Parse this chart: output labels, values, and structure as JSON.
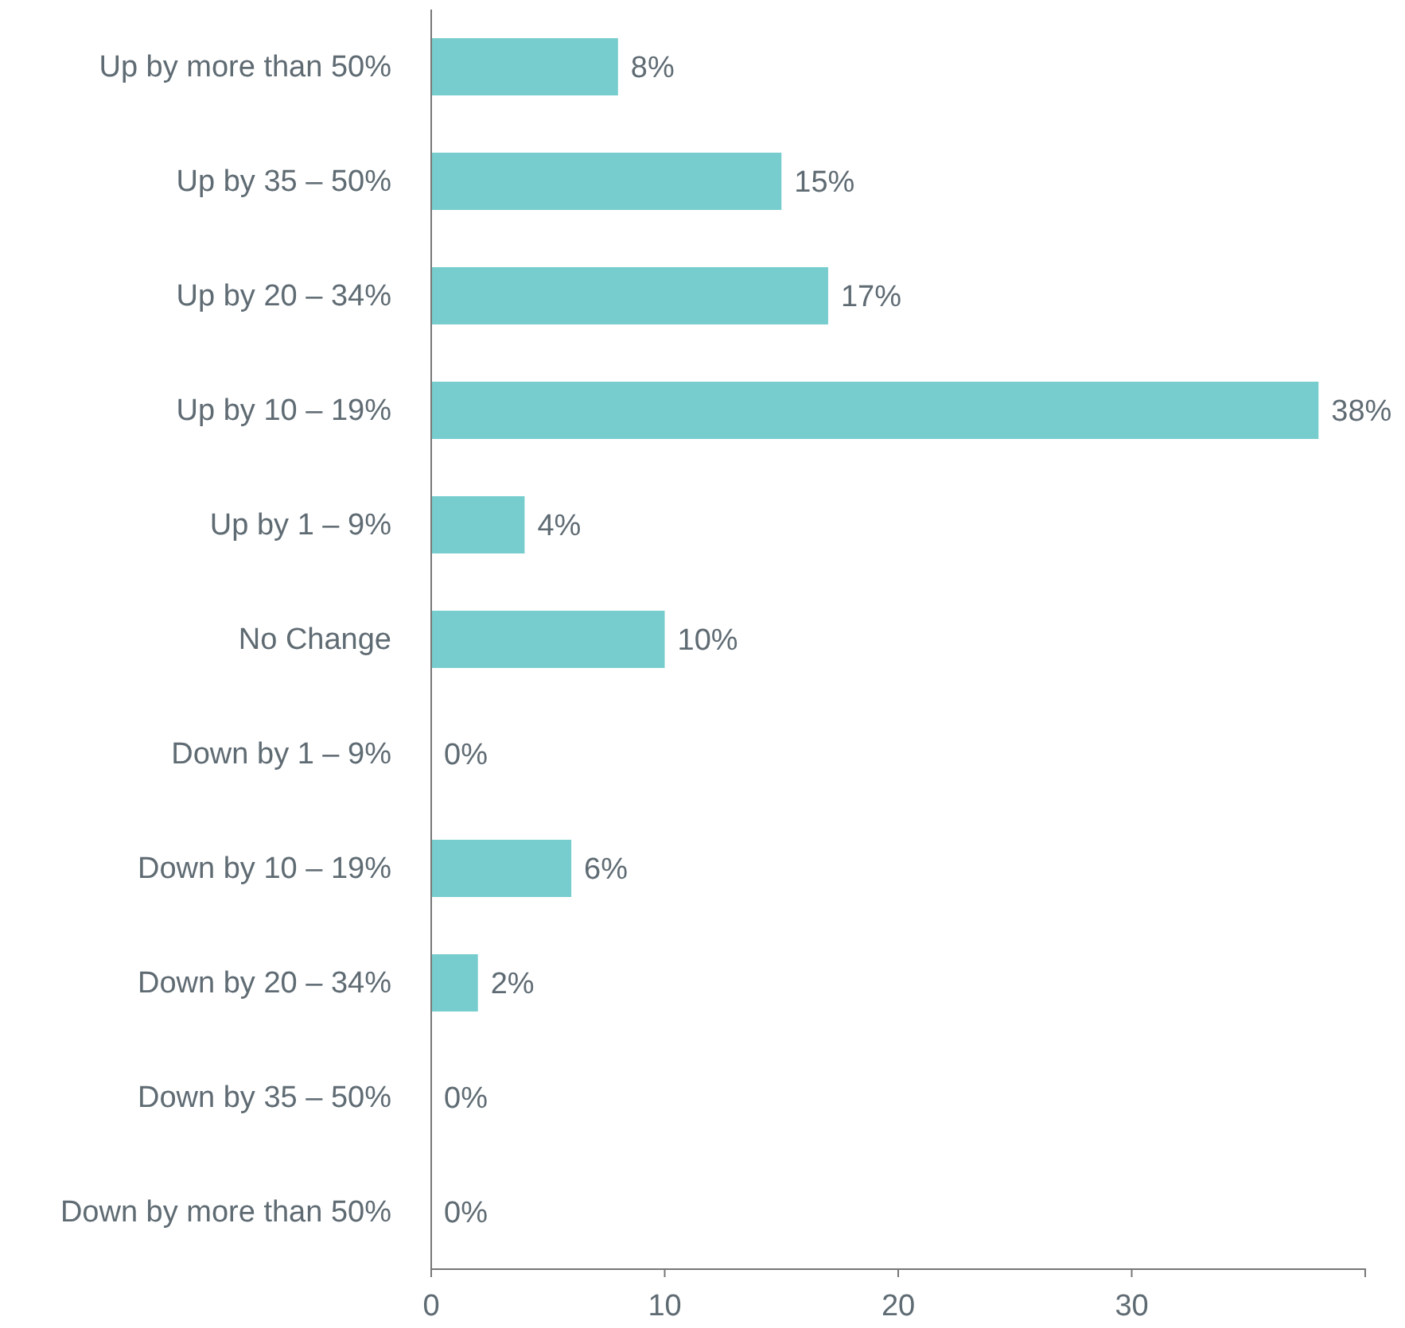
{
  "chart_data": {
    "type": "bar",
    "orientation": "horizontal",
    "categories": [
      "Up by more than 50%",
      "Up by 35 – 50%",
      "Up by 20 – 34%",
      "Up by 10 – 19%",
      "Up by 1 – 9%",
      "No Change",
      "Down by 1 – 9%",
      "Down by 10 – 19%",
      "Down by 20 – 34%",
      "Down by 35 – 50%",
      "Down by more than 50%"
    ],
    "values": [
      8,
      15,
      17,
      38,
      4,
      10,
      0,
      6,
      2,
      0,
      0
    ],
    "value_labels": [
      "8%",
      "15%",
      "17%",
      "38%",
      "4%",
      "10%",
      "0%",
      "6%",
      "2%",
      "0%",
      "0%"
    ],
    "color": "#77cdcd",
    "xlim": [
      0,
      40
    ],
    "xticks": [
      0,
      10,
      20,
      30
    ],
    "grid": false
  }
}
